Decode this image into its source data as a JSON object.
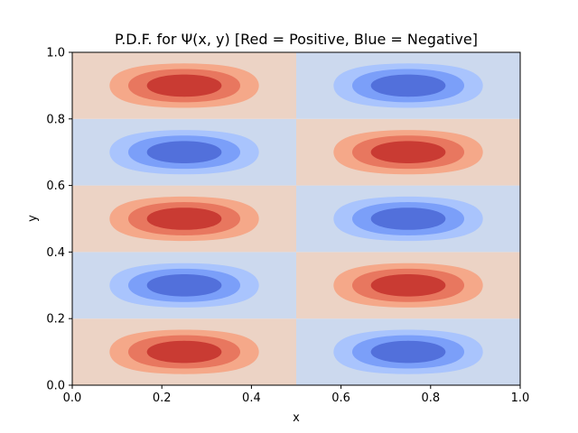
{
  "chart_data": {
    "type": "heatmap",
    "subtype": "filled-contour",
    "title": "P.D.F. for Ψ(x, y) [Red = Positive, Blue = Negative]",
    "xlabel": "x",
    "ylabel": "y",
    "xlim": [
      0.0,
      1.0
    ],
    "ylim": [
      0.0,
      1.0
    ],
    "xticks": [
      0.0,
      0.2,
      0.4,
      0.6,
      0.8,
      1.0
    ],
    "yticks": [
      0.0,
      0.2,
      0.4,
      0.6,
      0.8,
      1.0
    ],
    "xtick_labels": [
      "0.0",
      "0.2",
      "0.4",
      "0.6",
      "0.8",
      "1.0"
    ],
    "ytick_labels": [
      "0.0",
      "0.2",
      "0.4",
      "0.6",
      "0.8",
      "1.0"
    ],
    "grid": false,
    "legend": "none",
    "colormap": "coolwarm",
    "function": "sign(sin(2*pi*x)*sin(5*pi*y)) * sin(2*pi*x)^2 * sin(5*pi*y)^2",
    "contour_levels": [
      0.0,
      0.25,
      0.5,
      0.75,
      1.0
    ],
    "lobes": [
      {
        "x_range": [
          0.0,
          0.5
        ],
        "y_range": [
          0.0,
          0.2
        ],
        "sign": "positive"
      },
      {
        "x_range": [
          0.5,
          1.0
        ],
        "y_range": [
          0.0,
          0.2
        ],
        "sign": "negative"
      },
      {
        "x_range": [
          0.0,
          0.5
        ],
        "y_range": [
          0.2,
          0.4
        ],
        "sign": "negative"
      },
      {
        "x_range": [
          0.5,
          1.0
        ],
        "y_range": [
          0.2,
          0.4
        ],
        "sign": "positive"
      },
      {
        "x_range": [
          0.0,
          0.5
        ],
        "y_range": [
          0.4,
          0.6
        ],
        "sign": "positive"
      },
      {
        "x_range": [
          0.5,
          1.0
        ],
        "y_range": [
          0.4,
          0.6
        ],
        "sign": "negative"
      },
      {
        "x_range": [
          0.0,
          0.5
        ],
        "y_range": [
          0.6,
          0.8
        ],
        "sign": "negative"
      },
      {
        "x_range": [
          0.5,
          1.0
        ],
        "y_range": [
          0.6,
          0.8
        ],
        "sign": "positive"
      },
      {
        "x_range": [
          0.0,
          0.5
        ],
        "y_range": [
          0.8,
          1.0
        ],
        "sign": "positive"
      },
      {
        "x_range": [
          0.5,
          1.0
        ],
        "y_range": [
          0.8,
          1.0
        ],
        "sign": "negative"
      }
    ],
    "colors": {
      "positive": [
        "#ecd3c5",
        "#f5a889",
        "#e8775f",
        "#c93b33"
      ],
      "negative": [
        "#ccd9ee",
        "#a9c4fd",
        "#7b9ff9",
        "#5270db"
      ]
    }
  }
}
